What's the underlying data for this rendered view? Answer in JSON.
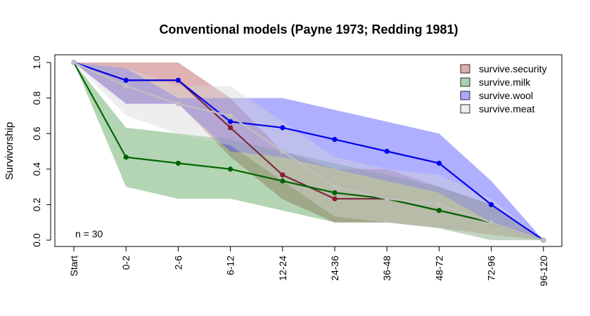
{
  "chart_data": {
    "type": "line",
    "title": "Conventional models (Payne 1973; Redding 1981)",
    "xlabel": "",
    "ylabel": "Survivorship",
    "categories": [
      "Start",
      "0-2",
      "2-6",
      "6-12",
      "12-24",
      "24-36",
      "36-48",
      "48-72",
      "72-96",
      "96-120"
    ],
    "ylim": [
      0,
      1
    ],
    "yticks": [
      "0.0",
      "0.2",
      "0.4",
      "0.6",
      "0.8",
      "1.0"
    ],
    "annotation": "n = 30",
    "legend_position": "top-right",
    "grid": false,
    "series": [
      {
        "name": "survive.security",
        "line_color": "#7b2a3d",
        "point_color": "#8b1a2e",
        "band_color": "#b34a4a",
        "values": [
          1.0,
          0.9,
          0.9,
          0.633,
          0.367,
          0.233,
          0.233,
          0.167,
          0.1,
          0.0
        ],
        "upper": [
          1.0,
          1.0,
          1.0,
          0.8,
          0.5,
          0.4,
          0.4,
          0.3,
          0.2,
          0.0
        ],
        "lower": [
          1.0,
          0.77,
          0.77,
          0.47,
          0.23,
          0.1,
          0.1,
          0.07,
          0.03,
          0.0
        ]
      },
      {
        "name": "survive.milk",
        "line_color": "#006400",
        "point_color": "#006400",
        "band_color": "#4a9a4a",
        "values": [
          1.0,
          0.467,
          0.433,
          0.4,
          0.333,
          0.267,
          0.233,
          0.167,
          0.1,
          0.0
        ],
        "upper": [
          1.0,
          0.633,
          0.6,
          0.567,
          0.5,
          0.433,
          0.367,
          0.3,
          0.2,
          0.0
        ],
        "lower": [
          1.0,
          0.3,
          0.233,
          0.233,
          0.167,
          0.1,
          0.1,
          0.067,
          0.0,
          0.0
        ]
      },
      {
        "name": "survive.wool",
        "line_color": "#0000ee",
        "point_color": "#0000ee",
        "band_color": "#4040ff",
        "values": [
          1.0,
          0.9,
          0.9,
          0.667,
          0.633,
          0.567,
          0.5,
          0.433,
          0.2,
          0.0
        ],
        "upper": [
          1.0,
          0.967,
          0.8,
          0.8,
          0.8,
          0.733,
          0.667,
          0.6,
          0.333,
          0.0
        ],
        "lower": [
          1.0,
          0.767,
          0.767,
          0.5,
          0.467,
          0.4,
          0.333,
          0.267,
          0.1,
          0.0
        ]
      },
      {
        "name": "survive.meat",
        "line_color": "#c0c0c0",
        "point_color": "#c0c0c0",
        "band_color": "#d6d6d6",
        "values": [
          1.0,
          0.867,
          0.767,
          0.7,
          0.5,
          0.3,
          0.233,
          0.2,
          0.1,
          0.0
        ],
        "upper": [
          1.0,
          0.967,
          0.867,
          0.867,
          0.667,
          0.467,
          0.4,
          0.367,
          0.233,
          0.0
        ],
        "lower": [
          1.0,
          0.7,
          0.6,
          0.533,
          0.333,
          0.133,
          0.1,
          0.067,
          0.0,
          0.0
        ]
      }
    ]
  }
}
